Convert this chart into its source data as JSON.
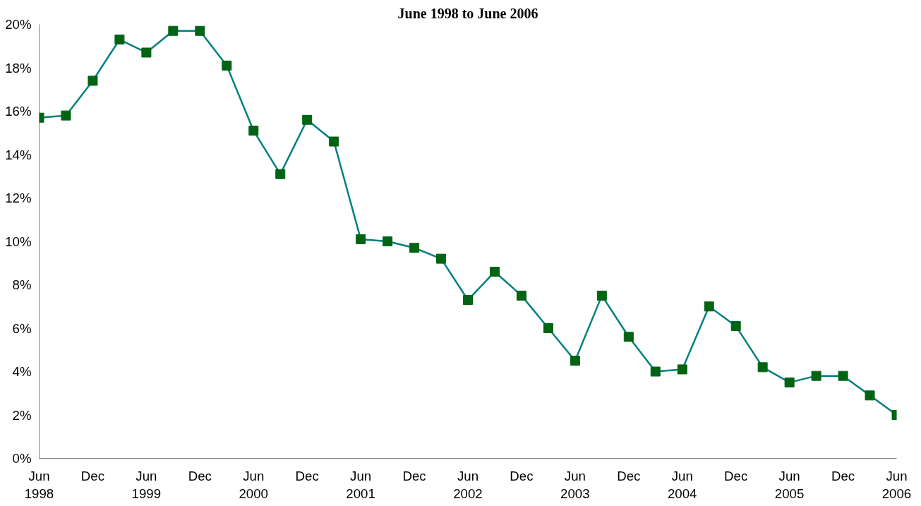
{
  "chart_data": {
    "type": "line",
    "title": "June 1998 to June 2006",
    "categories": [
      "Jun\n1998",
      null,
      "Dec",
      null,
      "Jun\n1999",
      null,
      "Dec",
      null,
      "Jun\n2000",
      null,
      "Dec",
      null,
      "Jun\n2001",
      null,
      "Dec",
      null,
      "Jun\n2002",
      null,
      "Dec",
      null,
      "Jun\n2003",
      null,
      "Dec",
      null,
      "Jun\n2004",
      null,
      "Dec",
      null,
      "Jun\n2005",
      null,
      "Dec",
      null,
      "Jun\n2006"
    ],
    "series": [
      {
        "color": "#008080",
        "values": [
          15.7,
          15.8,
          17.4,
          19.3,
          18.7,
          19.7,
          19.7,
          18.1,
          15.1,
          13.1,
          15.6,
          14.6,
          10.1,
          10.0,
          9.7,
          9.2,
          7.3,
          8.6,
          7.5,
          6.0,
          4.5,
          7.5,
          5.6,
          4.0,
          4.1,
          7.0,
          6.1,
          4.2,
          3.5,
          3.8,
          3.8,
          2.9,
          2.0
        ]
      }
    ],
    "ylim": [
      0,
      20
    ],
    "yticks": [
      {
        "value": 0,
        "label": "0%"
      },
      {
        "value": 2,
        "label": "2%"
      },
      {
        "value": 4,
        "label": "4%"
      },
      {
        "value": 6,
        "label": "6%"
      },
      {
        "value": 8,
        "label": "8%"
      },
      {
        "value": 10,
        "label": "10%"
      },
      {
        "value": 12,
        "label": "12%"
      },
      {
        "value": 14,
        "label": "14%"
      },
      {
        "value": 16,
        "label": "16%"
      },
      {
        "value": 18,
        "label": "18%"
      },
      {
        "value": 20,
        "label": "20%"
      }
    ],
    "marker": "square",
    "grid": false
  }
}
